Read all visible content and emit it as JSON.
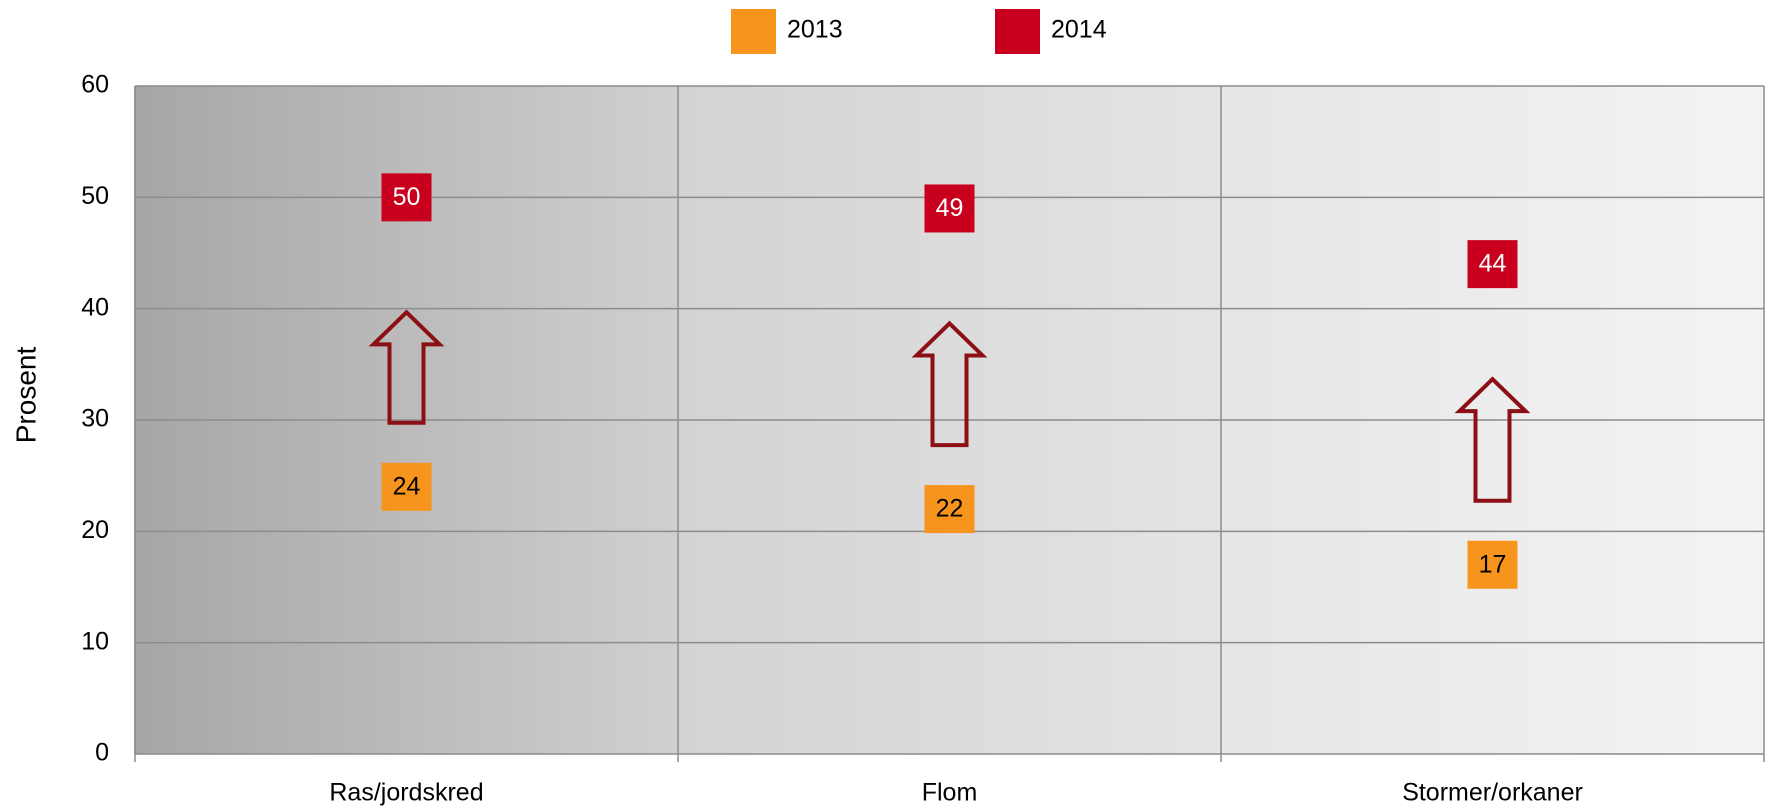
{
  "chart_data": {
    "type": "scatter",
    "categories": [
      "Ras/jordskred",
      "Flom",
      "Stormer/orkaner"
    ],
    "series": [
      {
        "name": "2013",
        "color": "#f7941d",
        "values": [
          24,
          22,
          17
        ]
      },
      {
        "name": "2014",
        "color": "#c8001e",
        "values": [
          50,
          49,
          44
        ]
      }
    ],
    "ylabel": "Prosent",
    "ylim": [
      0,
      60
    ],
    "yticks": [
      0,
      10,
      20,
      30,
      40,
      50,
      60
    ],
    "grid": true,
    "legend": "top"
  }
}
